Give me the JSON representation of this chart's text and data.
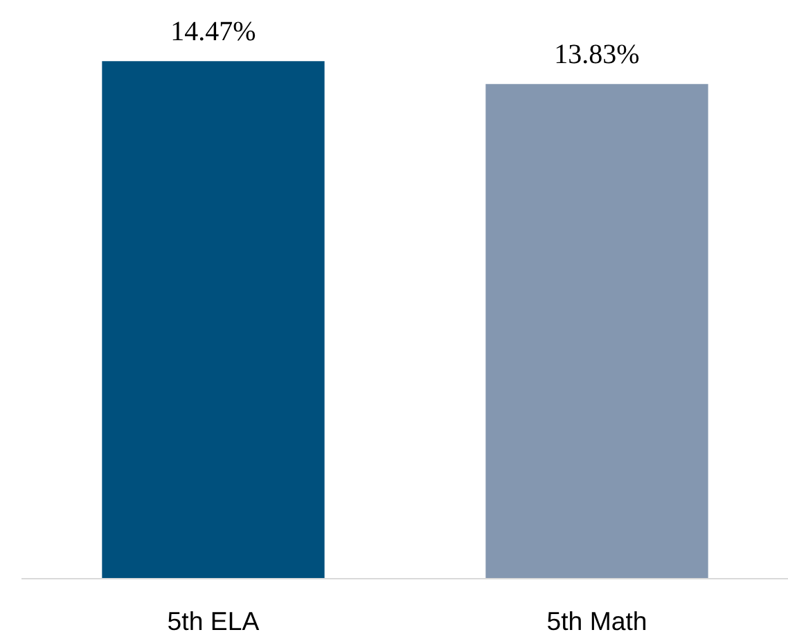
{
  "chart_data": {
    "type": "bar",
    "categories": [
      "5th ELA",
      "5th Math"
    ],
    "values": [
      14.47,
      13.83
    ],
    "colors": [
      "#00507d",
      "#8497b0"
    ],
    "value_labels": [
      "14.47%",
      "13.83%"
    ],
    "grid": false
  }
}
